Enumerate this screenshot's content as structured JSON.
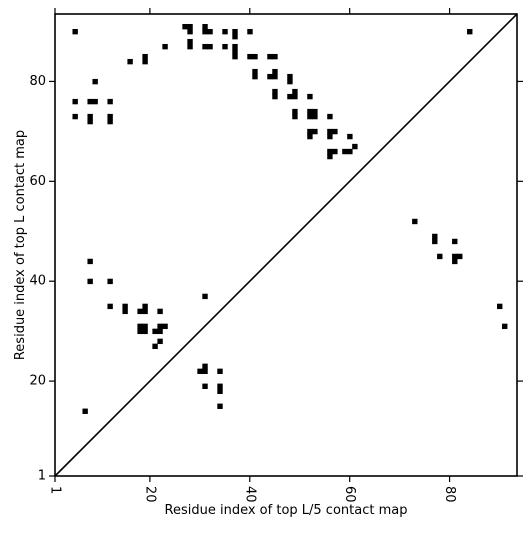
{
  "chart_data": {
    "type": "heatmap",
    "title": "",
    "xlabel": "Residue index of top L/5 contact map",
    "ylabel": "Residue index of top L contact map",
    "xlim": [
      1,
      93.5
    ],
    "ylim": [
      1,
      93.5
    ],
    "x_ticks": [
      1,
      20,
      40,
      60,
      80
    ],
    "y_ticks": [
      1,
      20,
      40,
      60,
      80
    ],
    "x_tick_labels": [
      "1",
      "20",
      "40",
      "60",
      "80"
    ],
    "y_tick_labels": [
      "1",
      "20",
      "40",
      "60",
      "80"
    ],
    "x_tick_rotation": -90,
    "diagonal": true,
    "marker_color": "#000000",
    "upper_triangle_points": [
      [
        5,
        90
      ],
      [
        5,
        76
      ],
      [
        5,
        73
      ],
      [
        8,
        76
      ],
      [
        8,
        73
      ],
      [
        8,
        72
      ],
      [
        9,
        80
      ],
      [
        9,
        76
      ],
      [
        12,
        76
      ],
      [
        12,
        73
      ],
      [
        12,
        72
      ],
      [
        16,
        84
      ],
      [
        19,
        85
      ],
      [
        19,
        84
      ],
      [
        23,
        87
      ],
      [
        27,
        91
      ],
      [
        28,
        91
      ],
      [
        28,
        90
      ],
      [
        28,
        88
      ],
      [
        28,
        87
      ],
      [
        31,
        91
      ],
      [
        31,
        90
      ],
      [
        31,
        87
      ],
      [
        32,
        90
      ],
      [
        32,
        87
      ],
      [
        35,
        90
      ],
      [
        35,
        87
      ],
      [
        37,
        90
      ],
      [
        37,
        89
      ],
      [
        37,
        87
      ],
      [
        37,
        86
      ],
      [
        37,
        85
      ],
      [
        40,
        90
      ],
      [
        40,
        85
      ],
      [
        41,
        85
      ],
      [
        41,
        82
      ],
      [
        41,
        81
      ],
      [
        44,
        85
      ],
      [
        44,
        81
      ],
      [
        45,
        85
      ],
      [
        45,
        82
      ],
      [
        45,
        81
      ],
      [
        45,
        78
      ],
      [
        45,
        77
      ],
      [
        48,
        81
      ],
      [
        48,
        80
      ],
      [
        48,
        77
      ],
      [
        49,
        78
      ],
      [
        49,
        77
      ],
      [
        49,
        74
      ],
      [
        49,
        73
      ],
      [
        52,
        77
      ],
      [
        52,
        74
      ],
      [
        52,
        73
      ],
      [
        52,
        70
      ],
      [
        52,
        69
      ],
      [
        53,
        74
      ],
      [
        53,
        73
      ],
      [
        53,
        70
      ],
      [
        56,
        73
      ],
      [
        56,
        70
      ],
      [
        56,
        69
      ],
      [
        56,
        66
      ],
      [
        56,
        65
      ],
      [
        57,
        70
      ],
      [
        57,
        66
      ],
      [
        59,
        66
      ],
      [
        60,
        69
      ],
      [
        60,
        66
      ],
      [
        61,
        67
      ],
      [
        84,
        90
      ]
    ],
    "lower_triangle_points": [
      [
        8,
        44
      ],
      [
        8,
        40
      ],
      [
        7,
        14
      ],
      [
        12,
        40
      ],
      [
        12,
        35
      ],
      [
        15,
        35
      ],
      [
        15,
        34
      ],
      [
        18,
        34
      ],
      [
        18,
        31
      ],
      [
        18,
        30
      ],
      [
        19,
        35
      ],
      [
        19,
        34
      ],
      [
        19,
        31
      ],
      [
        19,
        30
      ],
      [
        21,
        30
      ],
      [
        21,
        27
      ],
      [
        22,
        34
      ],
      [
        22,
        31
      ],
      [
        22,
        30
      ],
      [
        22,
        28
      ],
      [
        23,
        31
      ],
      [
        30,
        22
      ],
      [
        31,
        37
      ],
      [
        31,
        23
      ],
      [
        31,
        22
      ],
      [
        31,
        19
      ],
      [
        34,
        22
      ],
      [
        34,
        19
      ],
      [
        34,
        18
      ],
      [
        34,
        15
      ],
      [
        73,
        52
      ],
      [
        77,
        49
      ],
      [
        77,
        48
      ],
      [
        78,
        45
      ],
      [
        81,
        48
      ],
      [
        81,
        45
      ],
      [
        81,
        44
      ],
      [
        82,
        45
      ],
      [
        90,
        35
      ],
      [
        91,
        31
      ]
    ]
  }
}
